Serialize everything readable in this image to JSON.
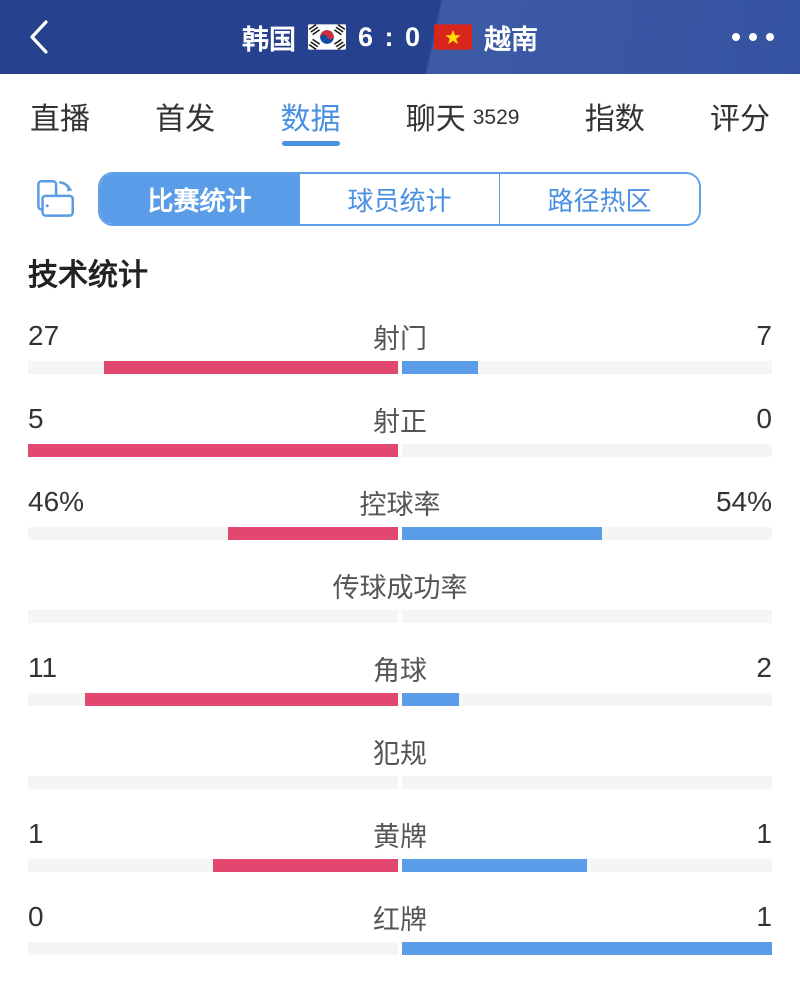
{
  "header": {
    "team_home": "韩国",
    "team_away": "越南",
    "score": "6 : 0"
  },
  "tabs": [
    {
      "label": "直播",
      "active": false,
      "badge": ""
    },
    {
      "label": "首发",
      "active": false,
      "badge": ""
    },
    {
      "label": "数据",
      "active": true,
      "badge": ""
    },
    {
      "label": "聊天",
      "active": false,
      "badge": "3529"
    },
    {
      "label": "指数",
      "active": false,
      "badge": ""
    },
    {
      "label": "评分",
      "active": false,
      "badge": ""
    }
  ],
  "segments": [
    {
      "label": "比赛统计",
      "active": true
    },
    {
      "label": "球员统计",
      "active": false
    },
    {
      "label": "路径热区",
      "active": false
    }
  ],
  "section_title": "技术统计",
  "colors": {
    "accent_blue": "#4a90e2",
    "home_bar": "#e2486f",
    "away_bar": "#5a9ce8",
    "bar_track": "#f4f5f7",
    "header_bg": "#2a4a9c"
  },
  "chart_data": {
    "type": "bar",
    "title": "技术统计",
    "legend": [
      "韩国",
      "越南"
    ],
    "rows": [
      {
        "label": "射门",
        "home": 27,
        "away": 7,
        "home_display": "27",
        "away_display": "7"
      },
      {
        "label": "射正",
        "home": 5,
        "away": 0,
        "home_display": "5",
        "away_display": "0"
      },
      {
        "label": "控球率",
        "home": 46,
        "away": 54,
        "home_display": "46%",
        "away_display": "54%"
      },
      {
        "label": "传球成功率",
        "home": null,
        "away": null,
        "home_display": "",
        "away_display": ""
      },
      {
        "label": "角球",
        "home": 11,
        "away": 2,
        "home_display": "11",
        "away_display": "2"
      },
      {
        "label": "犯规",
        "home": null,
        "away": null,
        "home_display": "",
        "away_display": ""
      },
      {
        "label": "黄牌",
        "home": 1,
        "away": 1,
        "home_display": "1",
        "away_display": "1"
      },
      {
        "label": "红牌",
        "home": 0,
        "away": 1,
        "home_display": "0",
        "away_display": "1"
      }
    ]
  }
}
